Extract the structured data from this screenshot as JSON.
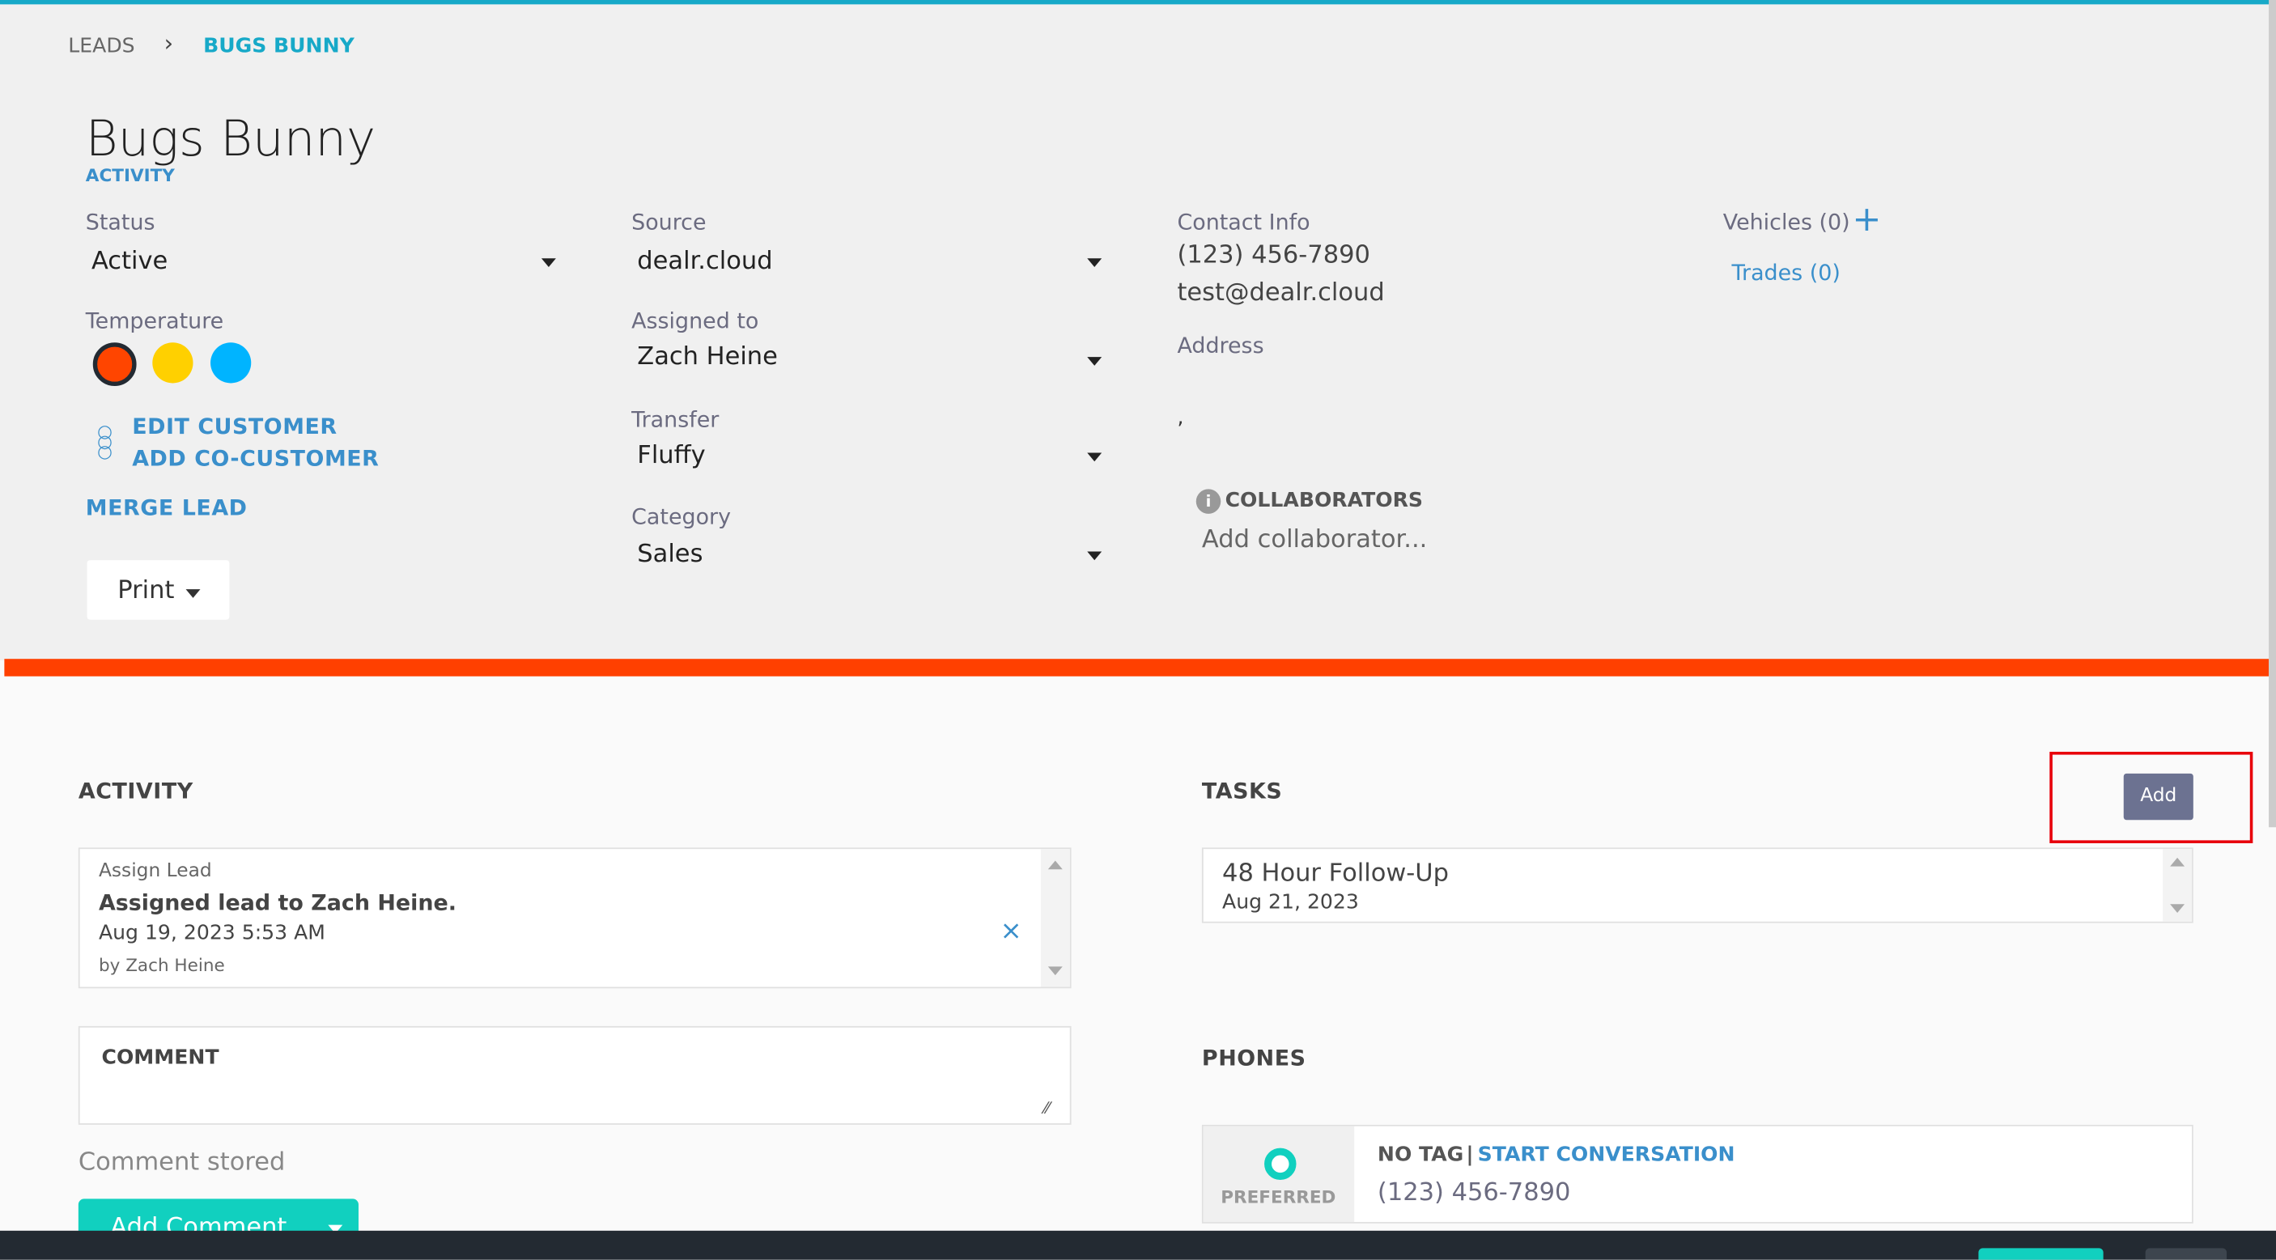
{
  "breadcrumb": {
    "root": "LEADS",
    "current": "BUGS BUNNY"
  },
  "lead": {
    "name": "Bugs Bunny",
    "tab": "ACTIVITY"
  },
  "fields": {
    "status": {
      "label": "Status",
      "value": "Active"
    },
    "temperature": {
      "label": "Temperature",
      "options": [
        {
          "color": "#ff4500",
          "selected": true
        },
        {
          "color": "#ffd000"
        },
        {
          "color": "#00b4ff"
        }
      ]
    },
    "source": {
      "label": "Source",
      "value": "dealr.cloud"
    },
    "assigned": {
      "label": "Assigned to",
      "value": "Zach Heine"
    },
    "transfer": {
      "label": "Transfer",
      "value": "Fluffy"
    },
    "category": {
      "label": "Category",
      "value": "Sales"
    }
  },
  "actions": {
    "edit_customer": "EDIT CUSTOMER",
    "add_co_customer": "ADD CO-CUSTOMER",
    "merge_lead": "MERGE LEAD",
    "print": "Print"
  },
  "contact": {
    "label": "Contact Info",
    "phone": "(123) 456-7890",
    "email": "test@dealr.cloud",
    "address_label": "Address",
    "address_value": ","
  },
  "collaborators": {
    "label": "COLLABORATORS",
    "placeholder": "Add collaborator..."
  },
  "vehicles": {
    "label": "Vehicles (0)",
    "trades": "Trades (0)"
  },
  "activity": {
    "title": "ACTIVITY",
    "items": [
      {
        "type": "Assign Lead",
        "text": "Assigned lead to Zach Heine.",
        "date": "Aug 19, 2023 5:53 AM",
        "by": "by Zach Heine"
      }
    ]
  },
  "comment": {
    "label": "COMMENT",
    "status": "Comment stored",
    "button": "Add Comment"
  },
  "tasks": {
    "title": "TASKS",
    "add": "Add",
    "items": [
      {
        "title": "48 Hour Follow-Up",
        "date": "Aug 21, 2023"
      }
    ]
  },
  "phones": {
    "title": "PHONES",
    "items": [
      {
        "preferred": "PREFERRED",
        "tag": "NO TAG",
        "action": "START CONVERSATION",
        "number": "(123) 456-7890"
      }
    ]
  },
  "colors": {
    "accent": "#17a9c8",
    "stripe": "#ff4000",
    "link": "#3a8fcb",
    "teal": "#11d0bf",
    "highlight": "#e8000b"
  }
}
